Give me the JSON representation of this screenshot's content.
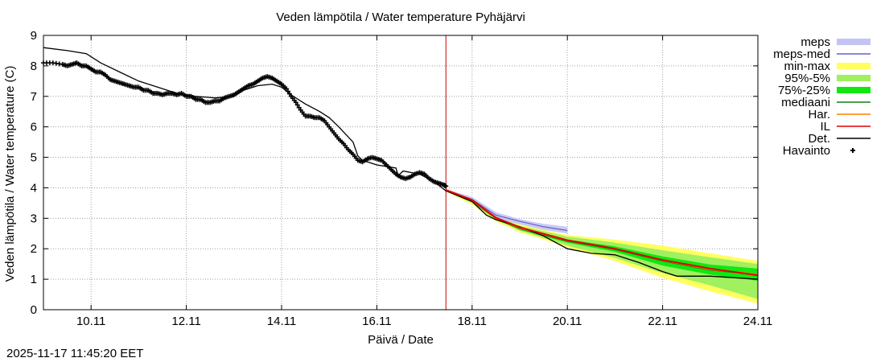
{
  "chart_data": {
    "type": "line",
    "title": "Veden lämpötila / Water temperature Pyhäjärvi",
    "xlabel": "Päivä / Date",
    "ylabel": "Veden lämpötila / Water temperature (C)",
    "xlim": [
      9.0,
      24.0
    ],
    "ylim": [
      0,
      9
    ],
    "x_ticks": [
      {
        "v": 10,
        "label": "10.11"
      },
      {
        "v": 12,
        "label": "12.11"
      },
      {
        "v": 14,
        "label": "14.11"
      },
      {
        "v": 16,
        "label": "16.11"
      },
      {
        "v": 18,
        "label": "18.11"
      },
      {
        "v": 20,
        "label": "20.11"
      },
      {
        "v": 22,
        "label": "22.11"
      },
      {
        "v": 24,
        "label": "24.11"
      }
    ],
    "y_ticks": [
      {
        "v": 0,
        "label": "0"
      },
      {
        "v": 1,
        "label": "1"
      },
      {
        "v": 2,
        "label": "2"
      },
      {
        "v": 3,
        "label": "3"
      },
      {
        "v": 4,
        "label": "4"
      },
      {
        "v": 5,
        "label": "5"
      },
      {
        "v": 6,
        "label": "6"
      },
      {
        "v": 7,
        "label": "7"
      },
      {
        "v": 8,
        "label": "8"
      },
      {
        "v": 9,
        "label": "9"
      }
    ],
    "grid": true,
    "legend_position": "outside-right",
    "forecast_start": 17.45,
    "legend": [
      {
        "key": "meps",
        "label": "meps",
        "kind": "band",
        "color": "#c4c4f4"
      },
      {
        "key": "meps_med",
        "label": "meps-med",
        "kind": "line",
        "color": "#6060d0"
      },
      {
        "key": "minmax",
        "label": "min-max",
        "kind": "band",
        "color": "#ffff60"
      },
      {
        "key": "p95_5",
        "label": "95%-5%",
        "kind": "band",
        "color": "#a0f060"
      },
      {
        "key": "p75_25",
        "label": "75%-25%",
        "kind": "band",
        "color": "#10e810"
      },
      {
        "key": "median",
        "label": "mediaani",
        "kind": "line",
        "color": "#108010"
      },
      {
        "key": "har",
        "label": "Har.",
        "kind": "line",
        "color": "#ff8000"
      },
      {
        "key": "il",
        "label": "IL",
        "kind": "line",
        "color": "#e00000"
      },
      {
        "key": "det",
        "label": "Det.",
        "kind": "line",
        "color": "#000000"
      },
      {
        "key": "obs",
        "label": "Havainto",
        "kind": "marker",
        "color": "#000000"
      }
    ],
    "series": {
      "meps": {
        "upper": [
          [
            17.45,
            3.95
          ],
          [
            18.0,
            3.7
          ],
          [
            18.5,
            3.2
          ],
          [
            19.0,
            2.97
          ],
          [
            19.5,
            2.82
          ],
          [
            20.0,
            2.72
          ]
        ],
        "lower": [
          [
            17.45,
            3.9
          ],
          [
            18.0,
            3.55
          ],
          [
            18.5,
            3.0
          ],
          [
            19.0,
            2.8
          ],
          [
            19.5,
            2.62
          ],
          [
            20.0,
            2.5
          ]
        ]
      },
      "meps_med": [
        [
          17.45,
          3.92
        ],
        [
          18.0,
          3.62
        ],
        [
          18.5,
          3.1
        ],
        [
          19.0,
          2.9
        ],
        [
          19.5,
          2.72
        ],
        [
          20.0,
          2.6
        ]
      ],
      "minmax": {
        "upper": [
          [
            17.45,
            3.95
          ],
          [
            18.0,
            3.65
          ],
          [
            18.5,
            3.1
          ],
          [
            19.0,
            2.8
          ],
          [
            20.0,
            2.45
          ],
          [
            21.0,
            2.3
          ],
          [
            22.0,
            2.1
          ],
          [
            23.0,
            1.85
          ],
          [
            24.0,
            1.6
          ]
        ],
        "lower": [
          [
            17.45,
            3.88
          ],
          [
            18.0,
            3.45
          ],
          [
            18.5,
            2.9
          ],
          [
            19.0,
            2.55
          ],
          [
            20.0,
            2.05
          ],
          [
            21.0,
            1.6
          ],
          [
            22.0,
            1.05
          ],
          [
            23.0,
            0.6
          ],
          [
            24.0,
            0.2
          ]
        ]
      },
      "p95_5": {
        "upper": [
          [
            17.45,
            3.94
          ],
          [
            18.0,
            3.62
          ],
          [
            18.5,
            3.07
          ],
          [
            19.0,
            2.75
          ],
          [
            20.0,
            2.4
          ],
          [
            21.0,
            2.2
          ],
          [
            22.0,
            1.95
          ],
          [
            23.0,
            1.72
          ],
          [
            24.0,
            1.5
          ]
        ],
        "lower": [
          [
            17.45,
            3.89
          ],
          [
            18.0,
            3.5
          ],
          [
            18.5,
            2.95
          ],
          [
            19.0,
            2.6
          ],
          [
            20.0,
            2.1
          ],
          [
            21.0,
            1.7
          ],
          [
            22.0,
            1.2
          ],
          [
            23.0,
            0.8
          ],
          [
            24.0,
            0.35
          ]
        ]
      },
      "p75_25": {
        "upper": [
          [
            17.45,
            3.93
          ],
          [
            18.0,
            3.58
          ],
          [
            18.5,
            3.03
          ],
          [
            19.0,
            2.7
          ],
          [
            20.0,
            2.3
          ],
          [
            21.0,
            2.08
          ],
          [
            22.0,
            1.75
          ],
          [
            23.0,
            1.48
          ],
          [
            24.0,
            1.35
          ]
        ],
        "lower": [
          [
            17.45,
            3.9
          ],
          [
            18.0,
            3.53
          ],
          [
            18.5,
            2.97
          ],
          [
            19.0,
            2.62
          ],
          [
            20.0,
            2.2
          ],
          [
            21.0,
            1.9
          ],
          [
            22.0,
            1.45
          ],
          [
            23.0,
            1.15
          ],
          [
            24.0,
            0.95
          ]
        ]
      },
      "median": [
        [
          17.45,
          3.92
        ],
        [
          18.0,
          3.56
        ],
        [
          18.5,
          2.99
        ],
        [
          19.0,
          2.66
        ],
        [
          20.0,
          2.25
        ],
        [
          21.0,
          1.98
        ],
        [
          22.0,
          1.6
        ],
        [
          23.0,
          1.3
        ],
        [
          24.0,
          1.15
        ]
      ],
      "har": [
        [
          17.45,
          3.92
        ],
        [
          18.0,
          3.58
        ],
        [
          18.5,
          3.0
        ],
        [
          19.0,
          2.68
        ],
        [
          20.0,
          2.27
        ],
        [
          21.0,
          2.0
        ],
        [
          22.0,
          1.62
        ],
        [
          23.0,
          1.32
        ],
        [
          24.0,
          1.17
        ]
      ],
      "il": [
        [
          17.45,
          3.93
        ],
        [
          18.0,
          3.6
        ],
        [
          18.5,
          3.02
        ],
        [
          19.0,
          2.7
        ],
        [
          20.0,
          2.28
        ],
        [
          21.0,
          2.0
        ],
        [
          22.0,
          1.63
        ],
        [
          23.0,
          1.35
        ],
        [
          24.0,
          1.13
        ]
      ],
      "det": [
        [
          9.0,
          8.6
        ],
        [
          9.5,
          8.5
        ],
        [
          9.9,
          8.4
        ],
        [
          10.2,
          8.1
        ],
        [
          10.6,
          7.8
        ],
        [
          11.0,
          7.5
        ],
        [
          11.4,
          7.3
        ],
        [
          11.8,
          7.1
        ],
        [
          12.2,
          7.0
        ],
        [
          12.6,
          6.95
        ],
        [
          13.0,
          7.0
        ],
        [
          13.2,
          7.2
        ],
        [
          13.5,
          7.35
        ],
        [
          13.8,
          7.4
        ],
        [
          14.0,
          7.3
        ],
        [
          14.2,
          7.05
        ],
        [
          14.5,
          6.75
        ],
        [
          14.8,
          6.5
        ],
        [
          15.0,
          6.3
        ],
        [
          15.2,
          6.0
        ],
        [
          15.5,
          5.5
        ],
        [
          15.6,
          5.05
        ],
        [
          15.7,
          4.9
        ],
        [
          16.0,
          4.75
        ],
        [
          16.4,
          4.65
        ],
        [
          16.45,
          4.4
        ],
        [
          16.55,
          4.55
        ],
        [
          16.9,
          4.45
        ],
        [
          17.2,
          4.2
        ],
        [
          17.45,
          3.9
        ],
        [
          18.0,
          3.55
        ],
        [
          18.3,
          3.1
        ],
        [
          18.5,
          2.95
        ],
        [
          19.0,
          2.72
        ],
        [
          19.5,
          2.42
        ],
        [
          20.0,
          2.0
        ],
        [
          20.5,
          1.85
        ],
        [
          21.0,
          1.8
        ],
        [
          21.5,
          1.55
        ],
        [
          22.0,
          1.25
        ],
        [
          22.3,
          1.1
        ],
        [
          23.0,
          1.1
        ],
        [
          23.5,
          1.05
        ],
        [
          24.0,
          1.0
        ]
      ],
      "obs": [
        [
          9.0,
          8.1
        ],
        [
          9.2,
          8.1
        ],
        [
          9.4,
          8.05
        ],
        [
          9.5,
          8.0
        ],
        [
          9.6,
          8.05
        ],
        [
          9.7,
          8.1
        ],
        [
          9.8,
          8.0
        ],
        [
          9.9,
          8.0
        ],
        [
          10.0,
          7.9
        ],
        [
          10.1,
          7.8
        ],
        [
          10.2,
          7.8
        ],
        [
          10.3,
          7.7
        ],
        [
          10.4,
          7.55
        ],
        [
          10.5,
          7.5
        ],
        [
          10.6,
          7.45
        ],
        [
          10.7,
          7.4
        ],
        [
          10.8,
          7.35
        ],
        [
          10.9,
          7.3
        ],
        [
          11.0,
          7.3
        ],
        [
          11.1,
          7.2
        ],
        [
          11.2,
          7.2
        ],
        [
          11.3,
          7.1
        ],
        [
          11.4,
          7.1
        ],
        [
          11.5,
          7.05
        ],
        [
          11.6,
          7.1
        ],
        [
          11.7,
          7.1
        ],
        [
          11.8,
          7.05
        ],
        [
          11.9,
          7.1
        ],
        [
          12.0,
          7.0
        ],
        [
          12.1,
          7.0
        ],
        [
          12.2,
          6.9
        ],
        [
          12.3,
          6.9
        ],
        [
          12.4,
          6.8
        ],
        [
          12.5,
          6.8
        ],
        [
          12.6,
          6.85
        ],
        [
          12.7,
          6.85
        ],
        [
          12.8,
          6.95
        ],
        [
          12.9,
          7.0
        ],
        [
          13.0,
          7.05
        ],
        [
          13.1,
          7.15
        ],
        [
          13.2,
          7.25
        ],
        [
          13.3,
          7.35
        ],
        [
          13.4,
          7.4
        ],
        [
          13.5,
          7.5
        ],
        [
          13.6,
          7.6
        ],
        [
          13.7,
          7.65
        ],
        [
          13.8,
          7.6
        ],
        [
          13.9,
          7.5
        ],
        [
          14.0,
          7.4
        ],
        [
          14.1,
          7.25
        ],
        [
          14.2,
          7.0
        ],
        [
          14.3,
          6.8
        ],
        [
          14.4,
          6.55
        ],
        [
          14.5,
          6.35
        ],
        [
          14.6,
          6.35
        ],
        [
          14.7,
          6.3
        ],
        [
          14.8,
          6.3
        ],
        [
          14.9,
          6.2
        ],
        [
          15.0,
          6.0
        ],
        [
          15.1,
          5.8
        ],
        [
          15.2,
          5.6
        ],
        [
          15.3,
          5.45
        ],
        [
          15.4,
          5.25
        ],
        [
          15.5,
          5.1
        ],
        [
          15.6,
          4.9
        ],
        [
          15.7,
          4.85
        ],
        [
          15.8,
          4.95
        ],
        [
          15.9,
          5.0
        ],
        [
          16.0,
          4.95
        ],
        [
          16.1,
          4.9
        ],
        [
          16.2,
          4.75
        ],
        [
          16.3,
          4.6
        ],
        [
          16.4,
          4.45
        ],
        [
          16.5,
          4.35
        ],
        [
          16.6,
          4.3
        ],
        [
          16.7,
          4.35
        ],
        [
          16.8,
          4.45
        ],
        [
          16.9,
          4.5
        ],
        [
          17.0,
          4.45
        ],
        [
          17.1,
          4.3
        ],
        [
          17.2,
          4.2
        ],
        [
          17.3,
          4.15
        ],
        [
          17.4,
          4.1
        ],
        [
          17.45,
          4.05
        ]
      ]
    }
  },
  "timestamp": "2025-11-17 11:45:20 EET"
}
